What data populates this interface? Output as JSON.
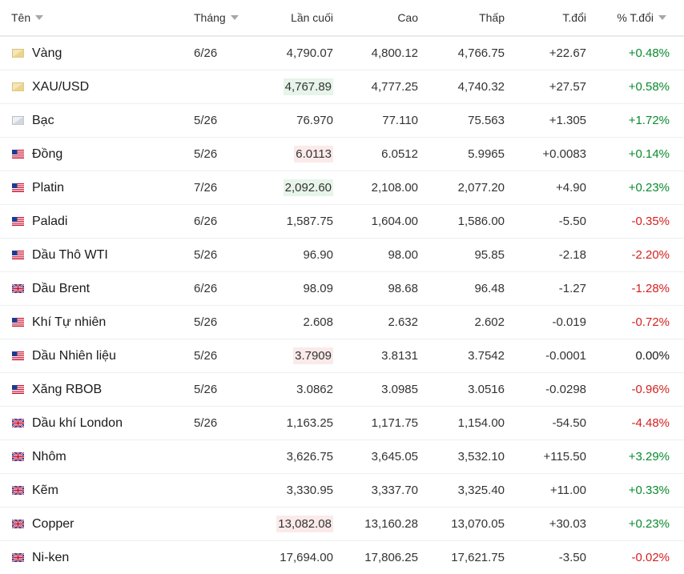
{
  "headers": {
    "name": "Tên",
    "month": "Tháng",
    "last": "Lần cuối",
    "high": "Cao",
    "low": "Thấp",
    "change": "T.đổi",
    "pct_change": "% T.đổi"
  },
  "colors": {
    "positive": "#0a8a2e",
    "negative": "#d41f1f",
    "highlight_up": "#e7f4e9",
    "highlight_down": "#fbeaea"
  },
  "rows": [
    {
      "name": "Vàng",
      "icon": "gold-bar-icon",
      "month": "6/26",
      "last": "4,790.07",
      "high": "4,800.12",
      "low": "4,766.75",
      "change": "+22.67",
      "pct": "+0.48%",
      "dir": "pos",
      "hl": ""
    },
    {
      "name": "XAU/USD",
      "icon": "gold-bar-icon",
      "month": "",
      "last": "4,767.89",
      "high": "4,777.25",
      "low": "4,740.32",
      "change": "+27.57",
      "pct": "+0.58%",
      "dir": "pos",
      "hl": "up"
    },
    {
      "name": "Bạc",
      "icon": "silver-bar-icon",
      "month": "5/26",
      "last": "76.970",
      "high": "77.110",
      "low": "75.563",
      "change": "+1.305",
      "pct": "+1.72%",
      "dir": "pos",
      "hl": ""
    },
    {
      "name": "Đồng",
      "icon": "us-flag-icon",
      "month": "5/26",
      "last": "6.0113",
      "high": "6.0512",
      "low": "5.9965",
      "change": "+0.0083",
      "pct": "+0.14%",
      "dir": "pos",
      "hl": "down"
    },
    {
      "name": "Platin",
      "icon": "us-flag-icon",
      "month": "7/26",
      "last": "2,092.60",
      "high": "2,108.00",
      "low": "2,077.20",
      "change": "+4.90",
      "pct": "+0.23%",
      "dir": "pos",
      "hl": "up"
    },
    {
      "name": "Paladi",
      "icon": "us-flag-icon",
      "month": "6/26",
      "last": "1,587.75",
      "high": "1,604.00",
      "low": "1,586.00",
      "change": "-5.50",
      "pct": "-0.35%",
      "dir": "neg",
      "hl": ""
    },
    {
      "name": "Dầu Thô WTI",
      "icon": "us-flag-icon",
      "month": "5/26",
      "last": "96.90",
      "high": "98.00",
      "low": "95.85",
      "change": "-2.18",
      "pct": "-2.20%",
      "dir": "neg",
      "hl": ""
    },
    {
      "name": "Dầu Brent",
      "icon": "uk-flag-icon",
      "month": "6/26",
      "last": "98.09",
      "high": "98.68",
      "low": "96.48",
      "change": "-1.27",
      "pct": "-1.28%",
      "dir": "neg",
      "hl": ""
    },
    {
      "name": "Khí Tự nhiên",
      "icon": "us-flag-icon",
      "month": "5/26",
      "last": "2.608",
      "high": "2.632",
      "low": "2.602",
      "change": "-0.019",
      "pct": "-0.72%",
      "dir": "neg",
      "hl": ""
    },
    {
      "name": "Dầu Nhiên liệu",
      "icon": "us-flag-icon",
      "month": "5/26",
      "last": "3.7909",
      "high": "3.8131",
      "low": "3.7542",
      "change": "-0.0001",
      "pct": "0.00%",
      "dir": "neg",
      "pct_dir": "flat",
      "hl": "down"
    },
    {
      "name": "Xăng RBOB",
      "icon": "us-flag-icon",
      "month": "5/26",
      "last": "3.0862",
      "high": "3.0985",
      "low": "3.0516",
      "change": "-0.0298",
      "pct": "-0.96%",
      "dir": "neg",
      "hl": ""
    },
    {
      "name": "Dầu khí London",
      "icon": "uk-flag-icon",
      "month": "5/26",
      "last": "1,163.25",
      "high": "1,171.75",
      "low": "1,154.00",
      "change": "-54.50",
      "pct": "-4.48%",
      "dir": "neg",
      "hl": ""
    },
    {
      "name": "Nhôm",
      "icon": "uk-flag-icon",
      "month": "",
      "last": "3,626.75",
      "high": "3,645.05",
      "low": "3,532.10",
      "change": "+115.50",
      "pct": "+3.29%",
      "dir": "pos",
      "hl": ""
    },
    {
      "name": "Kẽm",
      "icon": "uk-flag-icon",
      "month": "",
      "last": "3,330.95",
      "high": "3,337.70",
      "low": "3,325.40",
      "change": "+11.00",
      "pct": "+0.33%",
      "dir": "pos",
      "hl": ""
    },
    {
      "name": "Copper",
      "icon": "uk-flag-icon",
      "month": "",
      "last": "13,082.08",
      "high": "13,160.28",
      "low": "13,070.05",
      "change": "+30.03",
      "pct": "+0.23%",
      "dir": "pos",
      "hl": "down"
    },
    {
      "name": "Ni-ken",
      "icon": "uk-flag-icon",
      "month": "",
      "last": "17,694.00",
      "high": "17,806.25",
      "low": "17,621.75",
      "change": "-3.50",
      "pct": "-0.02%",
      "dir": "neg",
      "hl": ""
    }
  ]
}
